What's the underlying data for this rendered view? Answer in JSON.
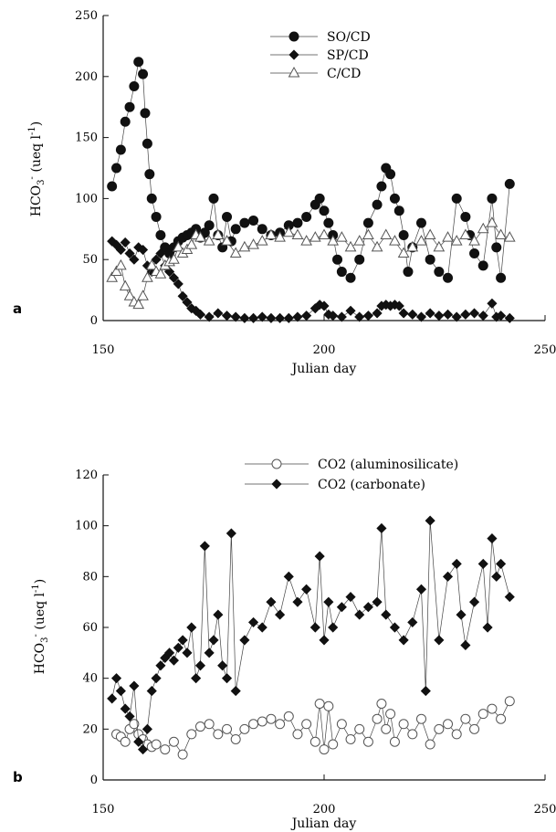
{
  "chart_data": [
    {
      "type": "scatter",
      "panel_label": "a",
      "xlabel": "Julian day",
      "ylabel": "HCO",
      "ylabel_sub": "3",
      "ylabel_sup": "-",
      "ylabel_units": "(ueq l",
      "ylabel_units_sup": "-1",
      "ylabel_close": ")",
      "xlim": [
        150,
        250
      ],
      "ylim": [
        0,
        250
      ],
      "xticks": [
        150,
        200,
        250
      ],
      "yticks": [
        0,
        50,
        100,
        150,
        200,
        250
      ],
      "grid": false,
      "legend_position": "top-center",
      "series": [
        {
          "name": "SO/CD",
          "marker": "filled-circle",
          "x": [
            152,
            153,
            154,
            155,
            156,
            157,
            158,
            159,
            159.5,
            160,
            160.5,
            161,
            162,
            163,
            164,
            165,
            166,
            167,
            168,
            169,
            170,
            171,
            172,
            173,
            174,
            175,
            176,
            177,
            178,
            179,
            180,
            182,
            184,
            186,
            188,
            190,
            192,
            194,
            196,
            198,
            199,
            200,
            201,
            202,
            203,
            204,
            206,
            208,
            210,
            212,
            213,
            214,
            215,
            216,
            217,
            218,
            219,
            220,
            222,
            224,
            226,
            228,
            230,
            232,
            233,
            234,
            236,
            238,
            239,
            240,
            242
          ],
          "y": [
            110,
            125,
            140,
            163,
            175,
            192,
            212,
            202,
            170,
            145,
            120,
            100,
            85,
            70,
            60,
            55,
            60,
            65,
            68,
            70,
            72,
            75,
            68,
            72,
            78,
            100,
            70,
            60,
            85,
            65,
            75,
            80,
            82,
            75,
            70,
            72,
            78,
            80,
            85,
            95,
            100,
            90,
            80,
            70,
            50,
            40,
            35,
            50,
            80,
            95,
            110,
            125,
            120,
            100,
            90,
            70,
            40,
            60,
            80,
            50,
            40,
            35,
            100,
            85,
            70,
            55,
            45,
            100,
            60,
            35,
            112
          ],
          "note": "values approximate"
        },
        {
          "name": "SP/CD",
          "marker": "filled-diamond",
          "x": [
            152,
            153,
            154,
            155,
            156,
            157,
            158,
            159,
            160,
            161,
            162,
            163,
            164,
            165,
            166,
            167,
            168,
            169,
            170,
            171,
            172,
            174,
            176,
            178,
            180,
            182,
            184,
            186,
            188,
            190,
            192,
            194,
            196,
            198,
            199,
            200,
            201,
            202,
            204,
            206,
            208,
            210,
            212,
            213,
            214,
            215,
            216,
            217,
            218,
            220,
            222,
            224,
            226,
            228,
            230,
            232,
            234,
            236,
            238,
            239,
            240,
            242
          ],
          "y": [
            65,
            62,
            58,
            64,
            55,
            50,
            60,
            58,
            45,
            40,
            50,
            55,
            45,
            40,
            35,
            30,
            20,
            15,
            10,
            8,
            5,
            3,
            6,
            4,
            3,
            2,
            2,
            3,
            2,
            2,
            2,
            3,
            4,
            10,
            13,
            12,
            5,
            4,
            3,
            8,
            3,
            4,
            6,
            12,
            13,
            12,
            13,
            12,
            6,
            5,
            3,
            6,
            4,
            5,
            3,
            5,
            6,
            4,
            14,
            3,
            4,
            2
          ],
          "note": "values approximate"
        },
        {
          "name": "C/CD",
          "marker": "open-triangle",
          "x": [
            152,
            153,
            154,
            155,
            156,
            157,
            158,
            159,
            160,
            161,
            162,
            163,
            164,
            165,
            166,
            167,
            168,
            169,
            170,
            171,
            172,
            174,
            176,
            178,
            180,
            182,
            184,
            186,
            188,
            190,
            192,
            194,
            196,
            198,
            200,
            202,
            204,
            206,
            208,
            210,
            212,
            214,
            216,
            218,
            220,
            222,
            224,
            226,
            228,
            230,
            232,
            234,
            236,
            238,
            240,
            242
          ],
          "y": [
            35,
            40,
            45,
            28,
            20,
            15,
            13,
            20,
            35,
            45,
            40,
            38,
            45,
            48,
            50,
            60,
            55,
            58,
            62,
            70,
            68,
            65,
            70,
            65,
            55,
            60,
            62,
            65,
            70,
            68,
            72,
            70,
            65,
            68,
            70,
            65,
            68,
            60,
            65,
            70,
            60,
            70,
            65,
            55,
            60,
            65,
            70,
            60,
            68,
            65,
            70,
            65,
            75,
            80,
            70,
            68
          ],
          "note": "values approximate"
        }
      ]
    },
    {
      "type": "scatter",
      "panel_label": "b",
      "xlabel": "Julian day",
      "ylabel": "HCO",
      "ylabel_sub": "3",
      "ylabel_sup": "-",
      "ylabel_units": "(ueq l",
      "ylabel_units_sup": "-1",
      "ylabel_close": ")",
      "xlim": [
        150,
        250
      ],
      "ylim": [
        0,
        120
      ],
      "xticks": [
        150,
        200,
        250
      ],
      "yticks": [
        0,
        20,
        40,
        60,
        80,
        100,
        120
      ],
      "grid": false,
      "legend_position": "top-center",
      "series": [
        {
          "name": "CO2 (aluminosilicate)",
          "marker": "open-circle",
          "x": [
            153,
            154,
            155,
            156,
            157,
            158,
            159,
            160,
            161,
            162,
            164,
            166,
            168,
            170,
            172,
            174,
            176,
            178,
            180,
            182,
            184,
            186,
            188,
            190,
            192,
            194,
            196,
            198,
            199,
            200,
            201,
            202,
            204,
            206,
            208,
            210,
            212,
            213,
            214,
            215,
            216,
            218,
            220,
            222,
            224,
            226,
            228,
            230,
            232,
            234,
            236,
            238,
            240,
            242
          ],
          "y": [
            18,
            17,
            15,
            20,
            22,
            18,
            16,
            14,
            13,
            14,
            12,
            15,
            10,
            18,
            21,
            22,
            18,
            20,
            16,
            20,
            22,
            23,
            24,
            22,
            25,
            18,
            22,
            15,
            30,
            12,
            29,
            14,
            22,
            16,
            20,
            15,
            24,
            30,
            20,
            26,
            15,
            22,
            18,
            24,
            14,
            20,
            22,
            18,
            24,
            20,
            26,
            28,
            24,
            31
          ],
          "note": "values approximate"
        },
        {
          "name": "CO2 (carbonate)",
          "marker": "filled-diamond",
          "x": [
            152,
            153,
            154,
            155,
            156,
            157,
            158,
            159,
            160,
            161,
            162,
            163,
            164,
            165,
            166,
            167,
            168,
            169,
            170,
            171,
            172,
            173,
            174,
            175,
            176,
            177,
            178,
            179,
            180,
            182,
            184,
            186,
            188,
            190,
            192,
            194,
            196,
            198,
            199,
            200,
            201,
            202,
            204,
            206,
            208,
            210,
            212,
            213,
            214,
            216,
            218,
            220,
            222,
            223,
            224,
            226,
            228,
            230,
            231,
            232,
            234,
            236,
            237,
            238,
            239,
            240,
            242
          ],
          "y": [
            32,
            40,
            35,
            28,
            25,
            37,
            15,
            12,
            20,
            35,
            40,
            45,
            48,
            50,
            47,
            52,
            55,
            50,
            60,
            40,
            45,
            92,
            50,
            55,
            65,
            45,
            40,
            97,
            35,
            55,
            62,
            60,
            70,
            65,
            80,
            70,
            75,
            60,
            88,
            55,
            70,
            60,
            68,
            72,
            65,
            68,
            70,
            99,
            65,
            60,
            55,
            62,
            75,
            35,
            102,
            55,
            80,
            85,
            65,
            53,
            70,
            85,
            60,
            95,
            80,
            85,
            72
          ],
          "note": "values approximate"
        }
      ]
    }
  ]
}
